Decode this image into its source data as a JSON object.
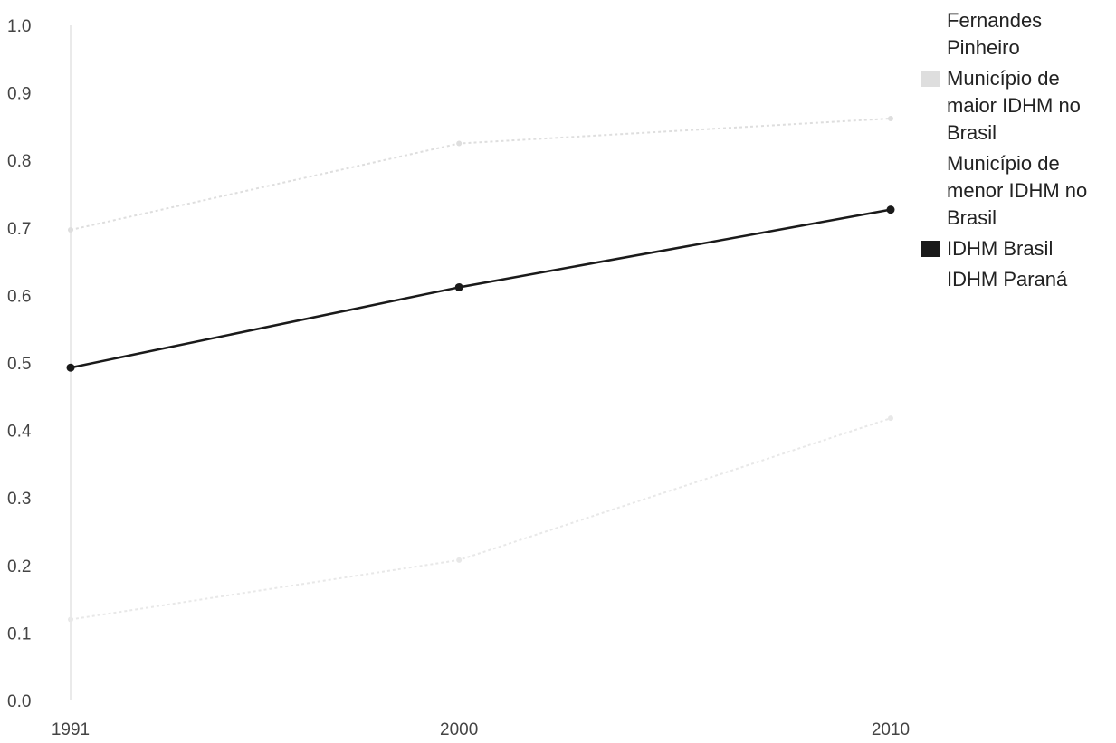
{
  "chart_data": {
    "type": "line",
    "categories": [
      "1991",
      "2000",
      "2010"
    ],
    "x": [
      1991,
      2000,
      2010
    ],
    "ylim": [
      0,
      1
    ],
    "yticks": [
      "0.0",
      "0.1",
      "0.2",
      "0.3",
      "0.4",
      "0.5",
      "0.6",
      "0.7",
      "0.8",
      "0.9",
      "1.0"
    ],
    "title": "",
    "xlabel": "",
    "ylabel": "",
    "grid": false,
    "legend_position": "right",
    "series": [
      {
        "name": "Fernandes Pinheiro",
        "values": [
          null,
          null,
          null
        ],
        "color": "#ffffff",
        "show_swatch": false
      },
      {
        "name": "Município de maior IDHM no Brasil",
        "values": [
          0.697,
          0.825,
          0.862
        ],
        "color": "#dedede",
        "show_swatch": true
      },
      {
        "name": "Município de menor IDHM no Brasil",
        "values": [
          0.12,
          0.208,
          0.418
        ],
        "color": "#e8e8e8",
        "show_swatch": false
      },
      {
        "name": "IDHM Brasil",
        "values": [
          0.493,
          0.612,
          0.727
        ],
        "color": "#1a1a1a",
        "show_swatch": true
      },
      {
        "name": "IDHM Paraná",
        "values": [
          null,
          null,
          null
        ],
        "color": "#ffffff",
        "show_swatch": false
      }
    ]
  }
}
